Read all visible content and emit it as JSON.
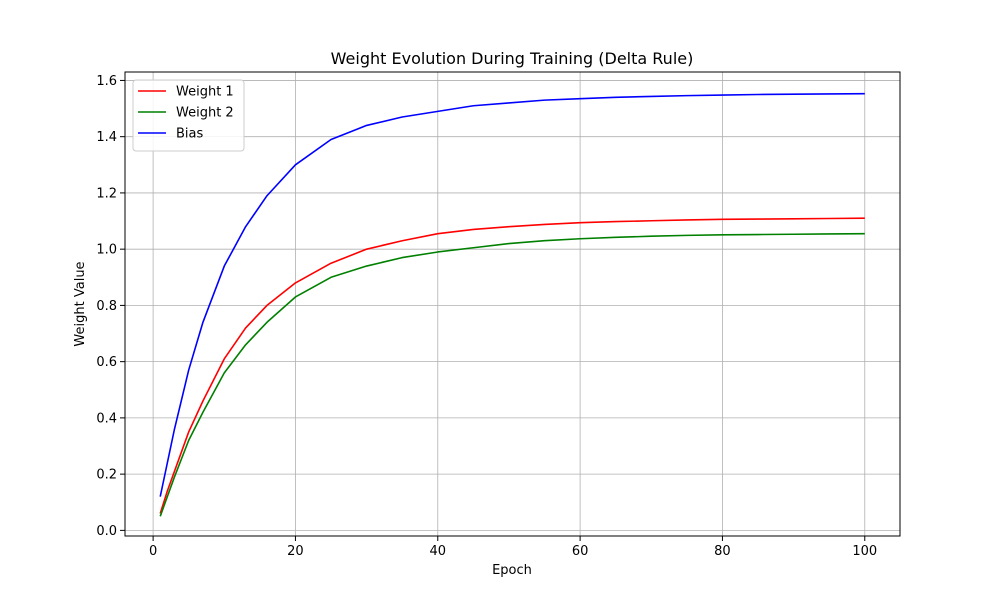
{
  "chart_data": {
    "type": "line",
    "title": "Weight Evolution During Training (Delta Rule)",
    "xlabel": "Epoch",
    "ylabel": "Weight Value",
    "xlim": [
      -3.95,
      104.95
    ],
    "ylim": [
      -0.02,
      1.63
    ],
    "xticks": [
      0,
      20,
      40,
      60,
      80,
      100
    ],
    "yticks": [
      0.0,
      0.2,
      0.4,
      0.6,
      0.8,
      1.0,
      1.2,
      1.4,
      1.6
    ],
    "xtick_labels": [
      "0",
      "20",
      "40",
      "60",
      "80",
      "100"
    ],
    "ytick_labels": [
      "0.0",
      "0.2",
      "0.4",
      "0.6",
      "0.8",
      "1.0",
      "1.2",
      "1.4",
      "1.6"
    ],
    "grid": true,
    "legend_position": "upper-left",
    "x": [
      1,
      2,
      3,
      5,
      7,
      10,
      13,
      16,
      20,
      25,
      30,
      35,
      40,
      45,
      50,
      55,
      60,
      65,
      70,
      75,
      80,
      85,
      90,
      95,
      100
    ],
    "series": [
      {
        "name": "Weight 1",
        "color": "#ff0000",
        "values": [
          0.06,
          0.14,
          0.21,
          0.35,
          0.46,
          0.61,
          0.72,
          0.8,
          0.88,
          0.95,
          1.0,
          1.03,
          1.055,
          1.07,
          1.08,
          1.088,
          1.094,
          1.098,
          1.101,
          1.104,
          1.106,
          1.107,
          1.108,
          1.109,
          1.11
        ]
      },
      {
        "name": "Weight 2",
        "color": "#008000",
        "values": [
          0.05,
          0.12,
          0.19,
          0.32,
          0.42,
          0.56,
          0.66,
          0.74,
          0.83,
          0.9,
          0.94,
          0.97,
          0.99,
          1.005,
          1.02,
          1.03,
          1.037,
          1.042,
          1.046,
          1.049,
          1.051,
          1.052,
          1.053,
          1.054,
          1.055
        ]
      },
      {
        "name": "Bias",
        "color": "#0000ff",
        "values": [
          0.12,
          0.24,
          0.36,
          0.57,
          0.74,
          0.94,
          1.08,
          1.19,
          1.3,
          1.39,
          1.44,
          1.47,
          1.49,
          1.51,
          1.52,
          1.53,
          1.535,
          1.54,
          1.543,
          1.546,
          1.548,
          1.55,
          1.551,
          1.552,
          1.553
        ]
      }
    ]
  }
}
